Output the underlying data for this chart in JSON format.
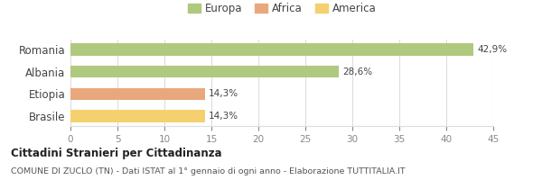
{
  "categories": [
    "Romania",
    "Albania",
    "Etiopia",
    "Brasile"
  ],
  "values": [
    42.9,
    28.6,
    14.3,
    14.3
  ],
  "labels": [
    "42,9%",
    "28,6%",
    "14,3%",
    "14,3%"
  ],
  "colors": [
    "#afc97e",
    "#afc97e",
    "#e8a87c",
    "#f5d06e"
  ],
  "legend": [
    {
      "label": "Europa",
      "color": "#afc97e"
    },
    {
      "label": "Africa",
      "color": "#e8a87c"
    },
    {
      "label": "America",
      "color": "#f5d06e"
    }
  ],
  "xlim": [
    0,
    45
  ],
  "xticks": [
    0,
    5,
    10,
    15,
    20,
    25,
    30,
    35,
    40,
    45
  ],
  "title1": "Cittadini Stranieri per Cittadinanza",
  "title2": "COMUNE DI ZUCLO (TN) - Dati ISTAT al 1° gennaio di ogni anno - Elaborazione TUTTITALIA.IT",
  "background_color": "#ffffff",
  "grid_color": "#dddddd"
}
